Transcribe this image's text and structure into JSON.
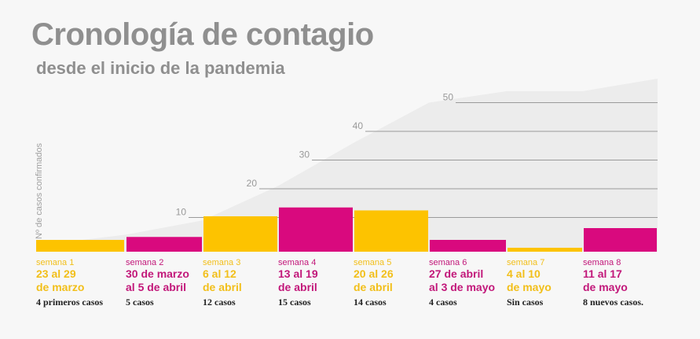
{
  "title": "Cronología de contagio",
  "subtitle": "desde el inicio de la pandemia",
  "chart_data": {
    "type": "bar",
    "ylabel": "Nº de casos confirmados",
    "y_ticks": [
      "10",
      "20",
      "30",
      "40",
      "50"
    ],
    "colors": {
      "yellow": "#fdc300",
      "magenta": "#d9097e",
      "area": "#ececec",
      "grid": "#9a9a9a"
    },
    "categories": [
      "semana 1",
      "semana 2",
      "semana 3",
      "semana 4",
      "semana 5",
      "semana 6",
      "semana 7",
      "semana 8"
    ],
    "weeks": [
      {
        "label": "semana 1",
        "dates": [
          "23 al 29",
          "de marzo"
        ],
        "cases_text": "4 primeros casos",
        "value": 4,
        "color": "yellow"
      },
      {
        "label": "semana 2",
        "dates": [
          "30 de marzo",
          "al 5 de abril"
        ],
        "cases_text": "5 casos",
        "value": 5,
        "color": "magenta"
      },
      {
        "label": "semana 3",
        "dates": [
          "6 al 12",
          "de abril"
        ],
        "cases_text": "12 casos",
        "value": 12,
        "color": "yellow"
      },
      {
        "label": "semana 4",
        "dates": [
          "13 al 19",
          "de abril"
        ],
        "cases_text": "15 casos",
        "value": 15,
        "color": "magenta"
      },
      {
        "label": "semana 5",
        "dates": [
          "20 al 26",
          "de abril"
        ],
        "cases_text": "14 casos",
        "value": 14,
        "color": "yellow"
      },
      {
        "label": "semana 6",
        "dates": [
          "27 de abril",
          "al 3 de mayo"
        ],
        "cases_text": "4 casos",
        "value": 4,
        "color": "magenta"
      },
      {
        "label": "semana 7",
        "dates": [
          "4 al 10",
          "de mayo"
        ],
        "cases_text": "Sin casos",
        "value": 0,
        "color": "yellow"
      },
      {
        "label": "semana 8",
        "dates": [
          "11 al 17",
          "de mayo"
        ],
        "cases_text": "8 nuevos casos.",
        "value": 8,
        "color": "magenta"
      }
    ],
    "cumulative": [
      4,
      9,
      21,
      36,
      50,
      54,
      54,
      62
    ]
  }
}
